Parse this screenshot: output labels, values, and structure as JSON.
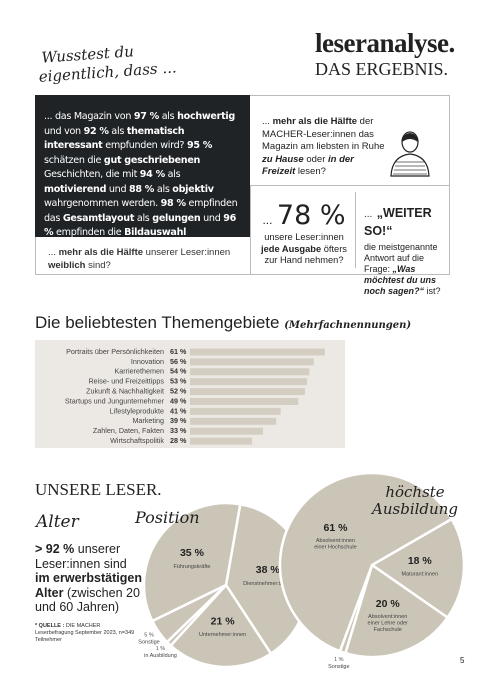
{
  "header": {
    "tagline": [
      "Wusstest du",
      "eigentlich, dass ..."
    ],
    "title": "leseranalyse.",
    "subtitle": "DAS ERGEBNIS."
  },
  "intro": {
    "segments": [
      "... das Magazin von ",
      "97 %",
      " als ",
      "hochwertig",
      " und von ",
      "92 %",
      " als ",
      "thematisch interessant",
      " empfunden wird? ",
      "95 %",
      " schätzen die ",
      "gut geschriebenen",
      " Geschichten, die mit ",
      "94 %",
      " als ",
      "motivierend",
      " und ",
      "88 %",
      " als ",
      "objektiv",
      " wahrgenommen werden. ",
      "98 %",
      " empfinden das ",
      "Gesamtlayout",
      " als ",
      "gelungen",
      " und ",
      "96 %",
      " empfinden die ",
      "Bildauswahl ansprechend",
      "."
    ]
  },
  "female": {
    "segments": [
      "... ",
      "mehr als die Hälfte",
      " unserer Leser:innen ",
      "weiblich",
      " sind?"
    ]
  },
  "home": {
    "segments": [
      "... ",
      "mehr als die Hälfte",
      " der MACHER-Leser:innen das Magazin am liebsten in Ruhe ",
      "zu Hause",
      " oder ",
      "in der Freizeit",
      " lesen?"
    ]
  },
  "often": {
    "prefix": "...",
    "figure": "78 %",
    "segments": [
      "unsere Leser:innen ",
      "jede Ausgabe",
      " öfters zur Hand nehmen?"
    ]
  },
  "weiter": {
    "prefix": "...",
    "headline": "„WEITER SO!“",
    "segments": [
      "die meistgenannte Antwort auf die Frage: ",
      "„Was möchtest du uns noch sagen?“",
      " ist?"
    ]
  },
  "themes": {
    "title": "Die beliebtesten Themengebiete",
    "note": "(Mehrfachnennungen)",
    "items": [
      {
        "label": "Portraits über Persönlichkeiten",
        "value": 61,
        "value_label": "61 %"
      },
      {
        "label": "Innovation",
        "value": 56,
        "value_label": "56 %"
      },
      {
        "label": "Karrierethemen",
        "value": 54,
        "value_label": "54 %"
      },
      {
        "label": "Reise- und Freizeittipps",
        "value": 53,
        "value_label": "53 %"
      },
      {
        "label": "Zukunft & Nachhaltigkeit",
        "value": 52,
        "value_label": "52 %"
      },
      {
        "label": "Startups und Jungunternehmer",
        "value": 49,
        "value_label": "49 %"
      },
      {
        "label": "Lifestyleprodukte",
        "value": 41,
        "value_label": "41 %"
      },
      {
        "label": "Marketing",
        "value": 39,
        "value_label": "39 %"
      },
      {
        "label": "Zahlen, Daten, Fakten",
        "value": 33,
        "value_label": "33 %"
      },
      {
        "label": "Wirtschaftspolitik",
        "value": 28,
        "value_label": "28 %"
      }
    ]
  },
  "readers": {
    "title": "UNSERE LESER.",
    "age_heading": "Alter",
    "age": {
      "segments": [
        "> 92 %",
        " unserer Leser:innen sind ",
        "im erwerbstätigen Alter",
        " (zwischen 20 und 60 Jahren)"
      ]
    },
    "source": {
      "segments": [
        "* QUELLE :",
        " DIE MACHER Leserbefragung September 2023, n=349 Teilnehmer"
      ]
    }
  },
  "position": {
    "title": "Position",
    "slices": [
      {
        "value": 38,
        "label": "38 %",
        "name": "Dienstnehmer:innen"
      },
      {
        "value": 21,
        "label": "21 %",
        "name": "Unternehmer:innen"
      },
      {
        "value": 1,
        "label": "1 %",
        "name": "in Ausbildung"
      },
      {
        "value": 5,
        "label": "5 %",
        "name": "Sonstige"
      },
      {
        "value": 35,
        "label": "35 %",
        "name": "Führungskräfte"
      }
    ]
  },
  "education": {
    "title": [
      "höchste",
      "Ausbildung"
    ],
    "slices": [
      {
        "value": 18,
        "label": "18 %",
        "name": "Maturant:innen"
      },
      {
        "value": 20,
        "label": "20 %",
        "name": "Absolvent:innen einer Lehre oder Fachschule"
      },
      {
        "value": 1,
        "label": "1 %",
        "name": "Sonstige"
      },
      {
        "value": 61,
        "label": "61 %",
        "name": "Absolvent:innen einer Hochschule"
      }
    ]
  },
  "page_number": "5"
}
